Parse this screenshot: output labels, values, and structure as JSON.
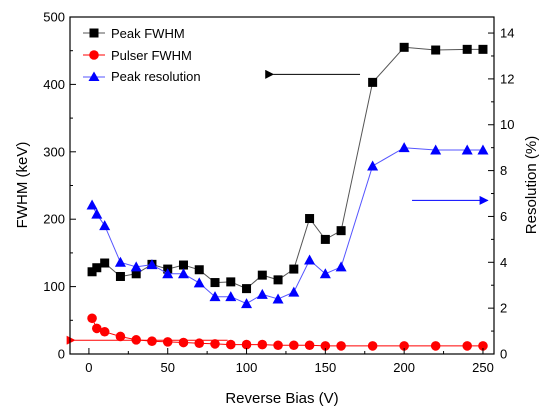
{
  "chart_data": {
    "type": "line",
    "xlabel": "Reverse Bias (V)",
    "ylabel_left": "FWHM (keV)",
    "ylabel_right": "Resolution (%)",
    "xlim": [
      -12,
      257
    ],
    "ylim_left": [
      0,
      500
    ],
    "ylim_right": [
      0,
      14.7
    ],
    "x_ticks": [
      0,
      50,
      100,
      150,
      200,
      250
    ],
    "y_left_ticks": [
      0,
      100,
      200,
      300,
      400,
      500
    ],
    "y_right_ticks": [
      0,
      2,
      4,
      6,
      8,
      10,
      12,
      14
    ],
    "legend_position": "top-left",
    "series": [
      {
        "name": "Peak FWHM",
        "axis": "left",
        "color": "#000000",
        "line_color": "#555555",
        "marker": "square",
        "x": [
          2,
          5,
          10,
          20,
          30,
          40,
          50,
          60,
          70,
          80,
          90,
          100,
          110,
          120,
          130,
          140,
          150,
          160,
          180,
          200,
          220,
          240,
          250
        ],
        "y": [
          122,
          128,
          135,
          115,
          119,
          133,
          126,
          132,
          125,
          106,
          107,
          97,
          117,
          110,
          126,
          201,
          170,
          183,
          403,
          455,
          451,
          452,
          452
        ]
      },
      {
        "name": "Pulser FWHM",
        "axis": "left",
        "color": "#ff0000",
        "line_color": "#ff0000",
        "marker": "circle",
        "x": [
          2,
          5,
          10,
          20,
          30,
          40,
          50,
          60,
          70,
          80,
          90,
          100,
          110,
          120,
          130,
          140,
          150,
          160,
          180,
          200,
          220,
          240,
          250
        ],
        "y": [
          53,
          38,
          33,
          26,
          21,
          19,
          18,
          17,
          16,
          15,
          14,
          14,
          14,
          13,
          13,
          13,
          12,
          12,
          12,
          12,
          12,
          12,
          12
        ]
      },
      {
        "name": "Peak resolution",
        "axis": "right",
        "color": "#0000ff",
        "line_color": "#5555ff",
        "marker": "triangle",
        "x": [
          2,
          5,
          10,
          20,
          30,
          40,
          50,
          60,
          70,
          80,
          90,
          100,
          110,
          120,
          130,
          140,
          150,
          160,
          180,
          200,
          220,
          240,
          250
        ],
        "y": [
          6.5,
          6.1,
          5.6,
          4.0,
          3.8,
          3.9,
          3.5,
          3.5,
          3.1,
          2.5,
          2.5,
          2.2,
          2.6,
          2.4,
          2.7,
          4.1,
          3.5,
          3.8,
          8.2,
          9.0,
          8.9,
          8.9,
          8.9
        ]
      }
    ],
    "annotations": [
      {
        "type": "arrow",
        "color": "#000000",
        "direction": "left",
        "from": [
          172,
          12.2
        ],
        "to": [
          117,
          12.2
        ],
        "axis": "right"
      },
      {
        "type": "arrow",
        "color": "#0000ff",
        "direction": "right",
        "from": [
          205,
          6.7
        ],
        "to": [
          253,
          6.7
        ],
        "axis": "right"
      },
      {
        "type": "arrow",
        "color": "#ff0000",
        "direction": "left",
        "from": [
          88,
          0.6
        ],
        "to": [
          -9,
          0.6
        ],
        "axis": "right"
      }
    ]
  }
}
